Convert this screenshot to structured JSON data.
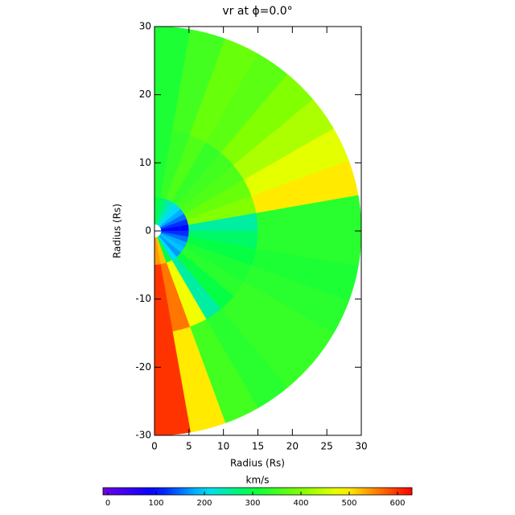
{
  "chart_data": {
    "type": "polar_heatmap",
    "title": "vr at ϕ=0.0°",
    "xlabel": "Radius (Rs)",
    "ylabel": "Radius (Rs)",
    "xlim": [
      0,
      30
    ],
    "ylim": [
      -30,
      30
    ],
    "xticks": [
      0,
      5,
      10,
      15,
      20,
      25,
      30
    ],
    "yticks": [
      -30,
      -20,
      -10,
      0,
      10,
      20,
      30
    ],
    "colormap": "rainbow",
    "colorbar_label": "km/s",
    "clim": [
      -10,
      630
    ],
    "colorbar_ticks": [
      0,
      100,
      200,
      300,
      400,
      500,
      600
    ],
    "radial_edges": [
      1,
      5,
      15,
      30
    ],
    "theta_edges": [
      90,
      80,
      70,
      60,
      50,
      40,
      30,
      20,
      10,
      0,
      -10,
      -20,
      -30,
      -40,
      -50,
      -60,
      -70,
      -80,
      -90
    ],
    "values": [
      [
        300,
        320,
        320
      ],
      [
        280,
        340,
        350
      ],
      [
        250,
        360,
        380
      ],
      [
        220,
        340,
        370
      ],
      [
        200,
        350,
        400
      ],
      [
        180,
        360,
        430
      ],
      [
        150,
        380,
        470
      ],
      [
        120,
        400,
        500
      ],
      [
        100,
        250,
        330
      ],
      [
        120,
        280,
        330
      ],
      [
        150,
        300,
        320
      ],
      [
        180,
        320,
        330
      ],
      [
        190,
        330,
        340
      ],
      [
        170,
        300,
        340
      ],
      [
        200,
        250,
        330
      ],
      [
        300,
        480,
        350
      ],
      [
        520,
        560,
        500
      ],
      [
        540,
        600,
        600
      ]
    ]
  }
}
